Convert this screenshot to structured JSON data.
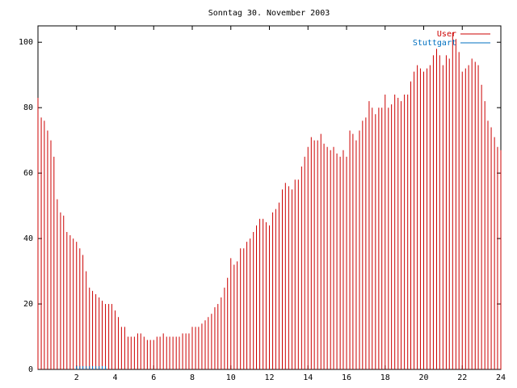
{
  "chart_data": {
    "type": "impulse",
    "title": "Sonntag 30. November 2003",
    "x": [
      0,
      0.17,
      0.33,
      0.5,
      0.67,
      0.83,
      1,
      1.17,
      1.33,
      1.5,
      1.67,
      1.83,
      2,
      2.17,
      2.33,
      2.5,
      2.67,
      2.83,
      3,
      3.17,
      3.33,
      3.5,
      3.67,
      3.83,
      4,
      4.17,
      4.33,
      4.5,
      4.67,
      4.83,
      5,
      5.17,
      5.33,
      5.5,
      5.67,
      5.83,
      6,
      6.17,
      6.33,
      6.5,
      6.67,
      6.83,
      7,
      7.17,
      7.33,
      7.5,
      7.67,
      7.83,
      8,
      8.17,
      8.33,
      8.5,
      8.67,
      8.83,
      9,
      9.17,
      9.33,
      9.5,
      9.67,
      9.83,
      10,
      10.17,
      10.33,
      10.5,
      10.67,
      10.83,
      11,
      11.17,
      11.33,
      11.5,
      11.67,
      11.83,
      12,
      12.17,
      12.33,
      12.5,
      12.67,
      12.83,
      13,
      13.17,
      13.33,
      13.5,
      13.67,
      13.83,
      14,
      14.17,
      14.33,
      14.5,
      14.67,
      14.83,
      15,
      15.17,
      15.33,
      15.5,
      15.67,
      15.83,
      16,
      16.17,
      16.33,
      16.5,
      16.67,
      16.83,
      17,
      17.17,
      17.33,
      17.5,
      17.67,
      17.83,
      18,
      18.17,
      18.33,
      18.5,
      18.67,
      18.83,
      19,
      19.17,
      19.33,
      19.5,
      19.67,
      19.83,
      20,
      20.17,
      20.33,
      20.5,
      20.67,
      20.83,
      21,
      21.17,
      21.33,
      21.5,
      21.67,
      21.83,
      22,
      22.17,
      22.33,
      22.5,
      22.67,
      22.83,
      23,
      23.17,
      23.33,
      23.5,
      23.67,
      23.83,
      24
    ],
    "series": [
      {
        "name": "User",
        "color": "#cc0000",
        "values": [
          83,
          77,
          76,
          73,
          70,
          65,
          52,
          48,
          47,
          42,
          41,
          40,
          39,
          37,
          35,
          30,
          25,
          24,
          23,
          22,
          21,
          20,
          20,
          20,
          18,
          16,
          13,
          13,
          10,
          10,
          10,
          11,
          11,
          10,
          9,
          9,
          9,
          10,
          10,
          11,
          10,
          10,
          10,
          10,
          10,
          11,
          11,
          11,
          13,
          13,
          13,
          14,
          15,
          16,
          17,
          19,
          20,
          22,
          25,
          28,
          34,
          32,
          33,
          37,
          37,
          39,
          40,
          42,
          44,
          46,
          46,
          45,
          44,
          48,
          49,
          51,
          55,
          57,
          56,
          55,
          58,
          58,
          62,
          65,
          68,
          71,
          70,
          70,
          72,
          69,
          68,
          67,
          68,
          66,
          65,
          67,
          65,
          73,
          72,
          70,
          73,
          76,
          77,
          82,
          80,
          78,
          80,
          80,
          84,
          80,
          81,
          84,
          83,
          82,
          84,
          84,
          88,
          91,
          93,
          92,
          91,
          92,
          93,
          96,
          98,
          96,
          93,
          96,
          95,
          103,
          101,
          97,
          91,
          92,
          93,
          95,
          94,
          93,
          87,
          82,
          76,
          74,
          71,
          68,
          67
        ]
      },
      {
        "name": "Stuttgart",
        "color": "#0070c0",
        "values": [
          null,
          null,
          null,
          null,
          null,
          null,
          null,
          null,
          null,
          null,
          null,
          null,
          1,
          1,
          1,
          1,
          1,
          1,
          1,
          1,
          1,
          1,
          null,
          null,
          null,
          null,
          null,
          null,
          null,
          null,
          null,
          null,
          null,
          null,
          null,
          null,
          null,
          null,
          null,
          null,
          null,
          null,
          null,
          null,
          null,
          null,
          null,
          null,
          null,
          null,
          null,
          null,
          null,
          null,
          null,
          null,
          null,
          null,
          null,
          null,
          null,
          null,
          null,
          null,
          null,
          null,
          null,
          null,
          null,
          null,
          null,
          null,
          null,
          null,
          null,
          null,
          null,
          null,
          null,
          null,
          null,
          null,
          null,
          null,
          null,
          null,
          null,
          null,
          null,
          null,
          null,
          null,
          null,
          null,
          null,
          null,
          null,
          null,
          null,
          null,
          null,
          null,
          null,
          null,
          null,
          null,
          null,
          null,
          null,
          null,
          null,
          null,
          null,
          null,
          null,
          null,
          null,
          null,
          null,
          null,
          null,
          null,
          null,
          null,
          null,
          null,
          null,
          null,
          null,
          null,
          null,
          null,
          null,
          null,
          null,
          null,
          null,
          null,
          null,
          null,
          null,
          null,
          null,
          null,
          null
        ]
      }
    ],
    "xlim": [
      0,
      24
    ],
    "xticks": [
      2,
      4,
      6,
      8,
      10,
      12,
      14,
      16,
      18,
      20,
      22,
      24
    ],
    "ylim": [
      0,
      105
    ],
    "yticks": [
      0,
      20,
      40,
      60,
      80,
      100
    ],
    "legend": "top-right"
  }
}
